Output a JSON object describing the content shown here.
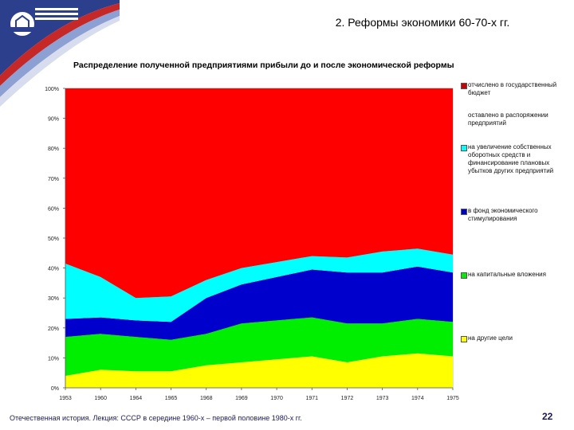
{
  "slide": {
    "title": "2. Реформы экономики 60-70-х гг.",
    "footer_caption": "Отечественная история. Лекция: СССР в середине 1960-х – первой половине 1980-х гг.",
    "page_number": "22"
  },
  "chart_data": {
    "type": "area",
    "stacked": true,
    "title": "Распределение полученной предприятиями прибыли до и после экономической реформы",
    "categories": [
      "1953",
      "1960",
      "1964",
      "1965",
      "1968",
      "1969",
      "1970",
      "1971",
      "1972",
      "1973",
      "1974",
      "1975"
    ],
    "yticks": [
      "0%",
      "10%",
      "20%",
      "30%",
      "40%",
      "50%",
      "60%",
      "70%",
      "80%",
      "90%",
      "100%"
    ],
    "ylim": [
      0,
      100
    ],
    "series": [
      {
        "name": "на другие цели",
        "color": "#ffff00",
        "values": [
          4,
          6,
          5.5,
          5.5,
          7.5,
          8.5,
          9.5,
          10.5,
          8.5,
          10.5,
          11.5,
          10.5
        ]
      },
      {
        "name": "на капитальные вложения",
        "color": "#00ee00",
        "values": [
          13,
          12,
          11.5,
          10.5,
          10.5,
          13,
          13,
          13,
          13,
          11,
          11.5,
          11.5
        ]
      },
      {
        "name": "в фонд экономического стимулирования",
        "color": "#0000cc",
        "values": [
          6,
          5.5,
          5.5,
          6,
          12,
          13,
          14.5,
          16,
          17,
          17,
          17.5,
          16.5
        ]
      },
      {
        "name": "на увеличение собственных оборотных средств и финансирование плановых убытков других предприятий",
        "color": "#00ffff",
        "values": [
          18.5,
          13.5,
          7.5,
          8.5,
          6,
          5.5,
          5,
          4.5,
          5,
          7,
          6,
          6
        ]
      },
      {
        "name": "оставлено в распоряжении предприятий",
        "color": "#ff0000",
        "values": [
          0,
          0,
          0,
          0,
          0,
          0,
          0,
          0,
          0,
          0,
          0,
          0
        ]
      },
      {
        "name": "отчислено в государственный бюджет",
        "color": "#ff0000",
        "values": [
          58.5,
          63,
          70,
          69.5,
          64,
          60,
          58,
          56,
          56.5,
          54.5,
          53.5,
          55.5
        ]
      }
    ],
    "legend": [
      {
        "label": "отчислено в государственный бюджет",
        "color": "#cc0000",
        "show_swatch": true
      },
      {
        "label": "оставлено в распоряжении предприятий",
        "color": "#ffffff",
        "show_swatch": false
      },
      {
        "label": "на увеличение собственных оборотных средств и финансирование плановых убытков других предприятий",
        "color": "#00ffff",
        "show_swatch": true
      },
      {
        "label": "в фонд экономического стимулирования",
        "color": "#0000cc",
        "show_swatch": true
      },
      {
        "label": "на капитальные вложения",
        "color": "#00ee00",
        "show_swatch": true
      },
      {
        "label": "на другие цели",
        "color": "#ffff00",
        "show_swatch": true
      }
    ],
    "legend_position": "right"
  }
}
